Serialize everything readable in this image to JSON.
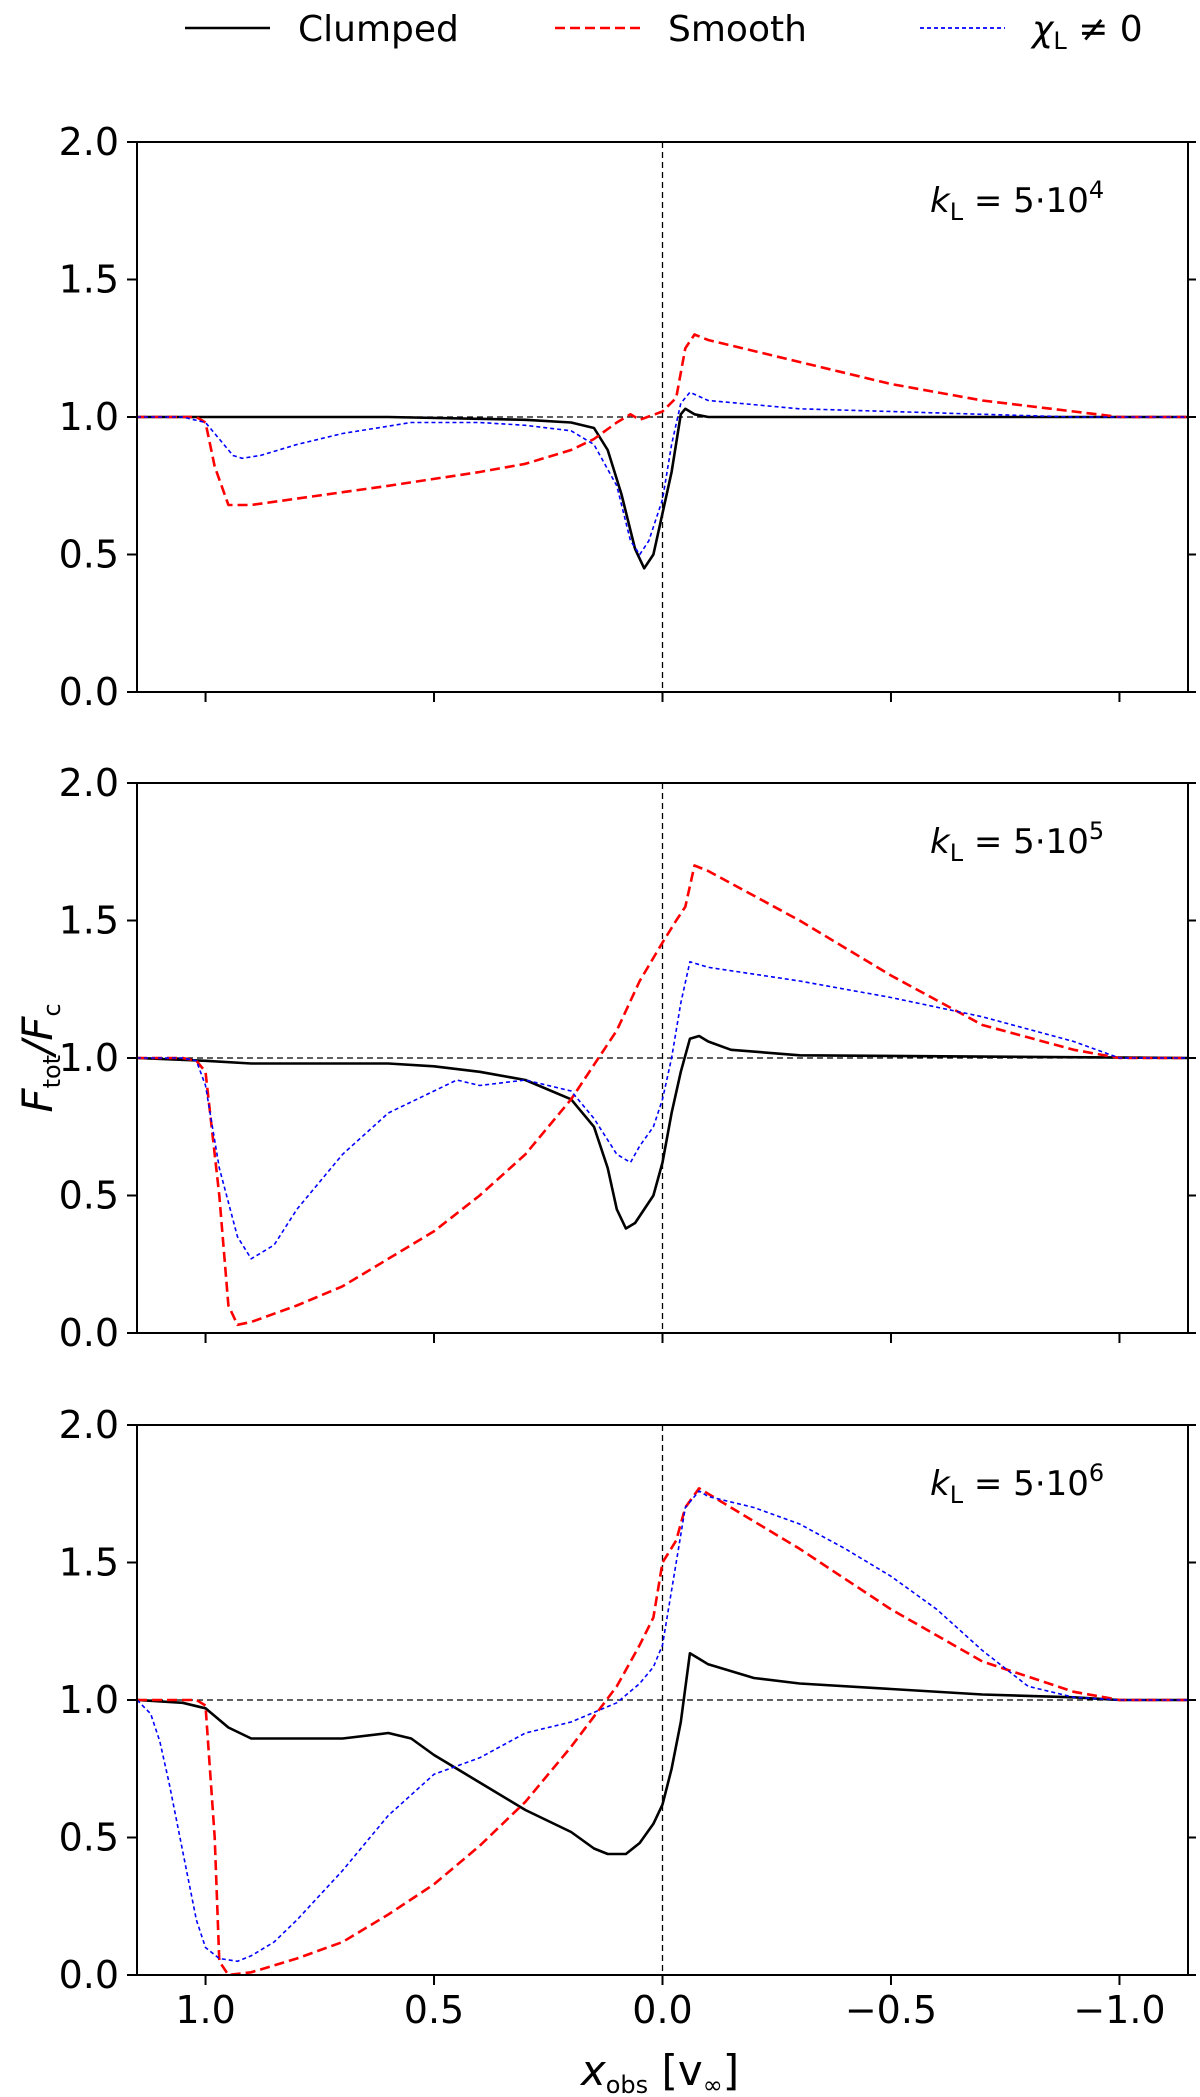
{
  "chart_data": {
    "type": "line",
    "xlabel": {
      "main": "x",
      "sub": "obs",
      "rest": " [v",
      "unit_sub": "∞",
      "close": "]"
    },
    "ylabel": {
      "main": "F",
      "sub": "tot",
      "slash": "/F",
      "sub2": "c"
    },
    "xlim": [
      1.15,
      -1.15
    ],
    "ylim": [
      0.0,
      2.0
    ],
    "xticks": [
      1.0,
      0.5,
      0.0,
      -0.5,
      -1.0
    ],
    "xtick_labels": [
      "1.0",
      "0.5",
      "0.0",
      "−0.5",
      "−1.0"
    ],
    "yticks": [
      0.0,
      0.5,
      1.0,
      1.5,
      2.0
    ],
    "ytick_labels": [
      "0.0",
      "0.5",
      "1.0",
      "1.5",
      "2.0"
    ],
    "legend": {
      "placement": "top-center",
      "entries": [
        {
          "label": "Clumped",
          "color": "#000000",
          "dash": "solid"
        },
        {
          "label": "Smooth",
          "color": "#ff0000",
          "dash": "dashed"
        },
        {
          "label": "χL ≠ 0",
          "label_main": "χ",
          "label_sub": "L",
          "label_rest": " ≠ 0",
          "color": "#0000ff",
          "dash": "dotted"
        }
      ]
    },
    "reference_lines": {
      "y": 1.0,
      "x": 0.0
    },
    "panels": [
      {
        "annotation": {
          "main": "k",
          "sub": "L",
          "rest": " = 5·10",
          "sup": "4"
        },
        "series": [
          {
            "name": "Clumped",
            "x": [
              1.15,
              0.6,
              0.3,
              0.2,
              0.15,
              0.12,
              0.09,
              0.06,
              0.04,
              0.02,
              0.0,
              -0.02,
              -0.04,
              -0.05,
              -0.07,
              -0.1,
              -0.3,
              -1.15
            ],
            "y": [
              1.0,
              1.0,
              0.99,
              0.98,
              0.96,
              0.88,
              0.72,
              0.52,
              0.45,
              0.5,
              0.65,
              0.8,
              1.01,
              1.03,
              1.01,
              1.0,
              1.0,
              1.0
            ]
          },
          {
            "name": "Smooth",
            "x": [
              1.15,
              1.05,
              1.02,
              1.0,
              0.98,
              0.95,
              0.9,
              0.6,
              0.4,
              0.3,
              0.2,
              0.15,
              0.1,
              0.07,
              0.05,
              0.0,
              -0.03,
              -0.05,
              -0.07,
              -0.1,
              -0.3,
              -0.5,
              -0.7,
              -0.9,
              -1.0,
              -1.15
            ],
            "y": [
              1.0,
              1.0,
              1.0,
              0.98,
              0.82,
              0.68,
              0.68,
              0.75,
              0.8,
              0.83,
              0.88,
              0.92,
              0.98,
              1.01,
              0.99,
              1.02,
              1.07,
              1.25,
              1.3,
              1.28,
              1.2,
              1.12,
              1.06,
              1.02,
              1.0,
              1.0
            ]
          },
          {
            "name": "χL ≠ 0",
            "x": [
              1.15,
              1.05,
              1.0,
              0.97,
              0.94,
              0.92,
              0.88,
              0.8,
              0.7,
              0.55,
              0.4,
              0.3,
              0.2,
              0.15,
              0.1,
              0.07,
              0.05,
              0.03,
              0.0,
              -0.02,
              -0.04,
              -0.06,
              -0.1,
              -0.3,
              -0.5,
              -0.7,
              -0.9,
              -1.0,
              -1.15
            ],
            "y": [
              1.0,
              1.0,
              0.98,
              0.92,
              0.86,
              0.85,
              0.86,
              0.9,
              0.94,
              0.98,
              0.98,
              0.97,
              0.95,
              0.9,
              0.75,
              0.55,
              0.5,
              0.55,
              0.7,
              0.9,
              1.05,
              1.09,
              1.06,
              1.03,
              1.02,
              1.01,
              1.0,
              1.0,
              1.0
            ]
          }
        ]
      },
      {
        "annotation": {
          "main": "k",
          "sub": "L",
          "rest": " = 5·10",
          "sup": "5"
        },
        "series": [
          {
            "name": "Clumped",
            "x": [
              1.15,
              1.0,
              0.9,
              0.6,
              0.5,
              0.4,
              0.3,
              0.2,
              0.15,
              0.12,
              0.1,
              0.08,
              0.06,
              0.02,
              0.0,
              -0.02,
              -0.04,
              -0.06,
              -0.08,
              -0.1,
              -0.15,
              -0.3,
              -1.15
            ],
            "y": [
              1.0,
              0.99,
              0.98,
              0.98,
              0.97,
              0.95,
              0.92,
              0.85,
              0.75,
              0.6,
              0.45,
              0.38,
              0.4,
              0.5,
              0.62,
              0.8,
              0.95,
              1.07,
              1.08,
              1.06,
              1.03,
              1.01,
              1.0
            ]
          },
          {
            "name": "Smooth",
            "x": [
              1.15,
              1.05,
              1.02,
              1.0,
              0.97,
              0.95,
              0.93,
              0.9,
              0.8,
              0.7,
              0.6,
              0.5,
              0.4,
              0.3,
              0.2,
              0.1,
              0.05,
              0.0,
              -0.03,
              -0.05,
              -0.07,
              -0.1,
              -0.3,
              -0.5,
              -0.7,
              -0.9,
              -1.0,
              -1.15
            ],
            "y": [
              1.0,
              1.0,
              0.99,
              0.95,
              0.5,
              0.1,
              0.03,
              0.04,
              0.1,
              0.17,
              0.27,
              0.37,
              0.5,
              0.65,
              0.85,
              1.1,
              1.28,
              1.42,
              1.5,
              1.55,
              1.7,
              1.68,
              1.5,
              1.3,
              1.12,
              1.03,
              1.0,
              1.0
            ]
          },
          {
            "name": "χL ≠ 0",
            "x": [
              1.15,
              1.05,
              1.02,
              1.0,
              0.97,
              0.93,
              0.9,
              0.85,
              0.8,
              0.7,
              0.6,
              0.5,
              0.45,
              0.4,
              0.3,
              0.2,
              0.15,
              0.1,
              0.07,
              0.05,
              0.02,
              0.0,
              -0.02,
              -0.04,
              -0.06,
              -0.1,
              -0.3,
              -0.5,
              -0.7,
              -0.9,
              -1.0,
              -1.15
            ],
            "y": [
              1.0,
              1.0,
              0.99,
              0.9,
              0.6,
              0.35,
              0.27,
              0.32,
              0.45,
              0.65,
              0.8,
              0.88,
              0.92,
              0.9,
              0.92,
              0.88,
              0.78,
              0.65,
              0.62,
              0.68,
              0.75,
              0.85,
              1.0,
              1.2,
              1.35,
              1.33,
              1.28,
              1.22,
              1.15,
              1.06,
              1.0,
              1.0
            ]
          }
        ]
      },
      {
        "annotation": {
          "main": "k",
          "sub": "L",
          "rest": " = 5·10",
          "sup": "6"
        },
        "series": [
          {
            "name": "Clumped",
            "x": [
              1.15,
              1.05,
              1.0,
              0.95,
              0.9,
              0.8,
              0.7,
              0.6,
              0.55,
              0.5,
              0.45,
              0.4,
              0.3,
              0.2,
              0.15,
              0.12,
              0.08,
              0.05,
              0.02,
              0.0,
              -0.02,
              -0.04,
              -0.06,
              -0.08,
              -0.1,
              -0.2,
              -0.3,
              -0.5,
              -0.7,
              -0.9,
              -1.0,
              -1.15
            ],
            "y": [
              1.0,
              0.99,
              0.97,
              0.9,
              0.86,
              0.86,
              0.86,
              0.88,
              0.86,
              0.8,
              0.75,
              0.7,
              0.6,
              0.52,
              0.46,
              0.44,
              0.44,
              0.48,
              0.55,
              0.62,
              0.75,
              0.92,
              1.17,
              1.15,
              1.13,
              1.08,
              1.06,
              1.04,
              1.02,
              1.01,
              1.0,
              1.0
            ]
          },
          {
            "name": "Smooth",
            "x": [
              1.15,
              1.05,
              1.02,
              1.0,
              0.98,
              0.97,
              0.95,
              0.9,
              0.8,
              0.7,
              0.6,
              0.5,
              0.4,
              0.3,
              0.2,
              0.1,
              0.05,
              0.02,
              0.0,
              -0.03,
              -0.05,
              -0.08,
              -0.1,
              -0.3,
              -0.5,
              -0.7,
              -0.9,
              -1.0,
              -1.15
            ],
            "y": [
              1.0,
              1.0,
              1.0,
              0.98,
              0.5,
              0.05,
              0.0,
              0.01,
              0.06,
              0.12,
              0.22,
              0.33,
              0.47,
              0.63,
              0.83,
              1.05,
              1.2,
              1.3,
              1.5,
              1.58,
              1.7,
              1.77,
              1.75,
              1.55,
              1.33,
              1.14,
              1.03,
              1.0,
              1.0
            ]
          },
          {
            "name": "χL ≠ 0",
            "x": [
              1.15,
              1.12,
              1.1,
              1.08,
              1.05,
              1.02,
              1.0,
              0.97,
              0.93,
              0.9,
              0.85,
              0.8,
              0.7,
              0.6,
              0.5,
              0.4,
              0.3,
              0.2,
              0.1,
              0.05,
              0.02,
              0.0,
              -0.03,
              -0.05,
              -0.08,
              -0.1,
              -0.2,
              -0.3,
              -0.4,
              -0.5,
              -0.6,
              -0.7,
              -0.8,
              -0.9,
              -1.0,
              -1.15
            ],
            "y": [
              1.0,
              0.95,
              0.85,
              0.7,
              0.45,
              0.2,
              0.1,
              0.06,
              0.05,
              0.07,
              0.12,
              0.2,
              0.38,
              0.58,
              0.73,
              0.79,
              0.88,
              0.92,
              0.99,
              1.06,
              1.12,
              1.2,
              1.5,
              1.7,
              1.76,
              1.74,
              1.7,
              1.64,
              1.55,
              1.45,
              1.33,
              1.18,
              1.05,
              1.01,
              1.0,
              1.0
            ]
          }
        ]
      }
    ]
  }
}
